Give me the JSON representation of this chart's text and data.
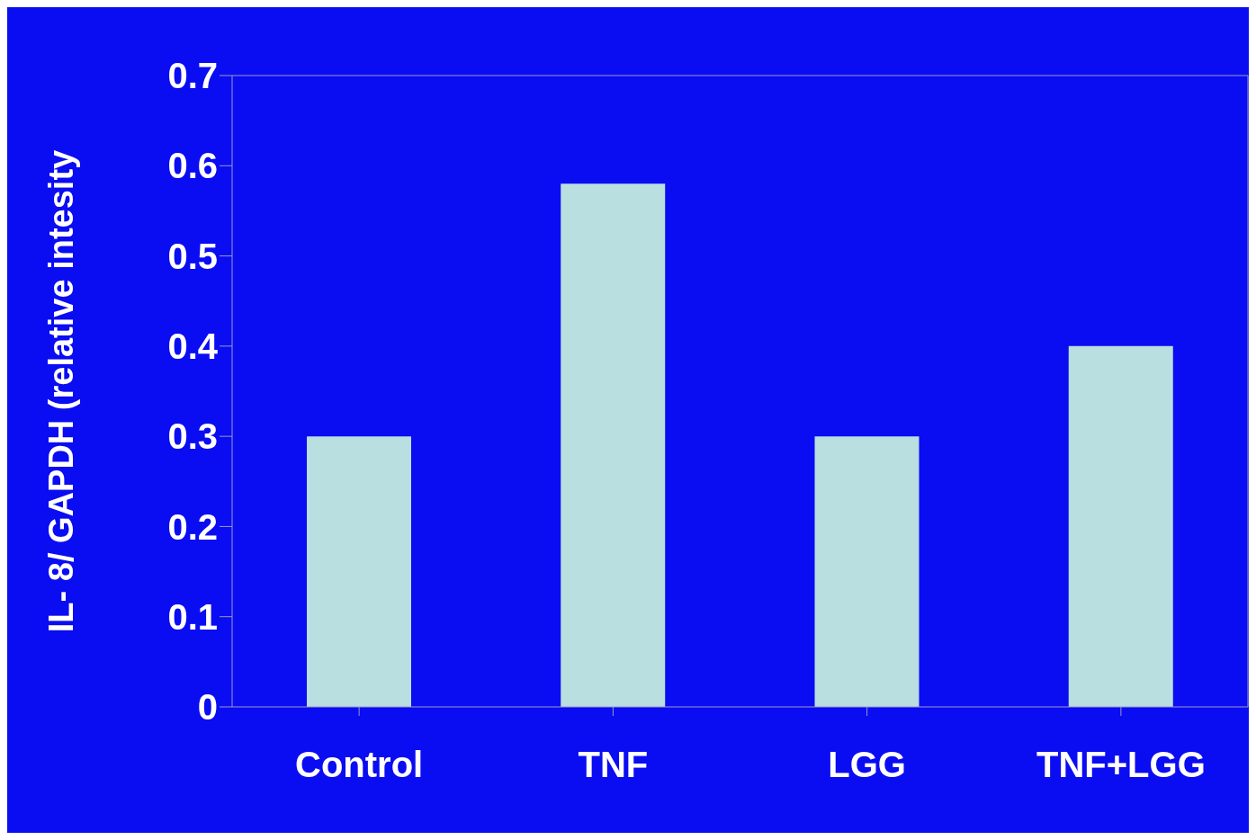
{
  "chart_data": {
    "type": "bar",
    "ylabel": "IL- 8/ GAPDH (relative intesity",
    "categories": [
      "Control",
      "TNF",
      "LGG",
      "TNF+LGG"
    ],
    "values": [
      0.3,
      0.58,
      0.3,
      0.4
    ],
    "color": "#b9dfe0",
    "ylim": [
      0,
      0.7
    ],
    "yticks": [
      0,
      0.1,
      0.2,
      0.3,
      0.4,
      0.5,
      0.6,
      0.7
    ],
    "grid": false
  }
}
